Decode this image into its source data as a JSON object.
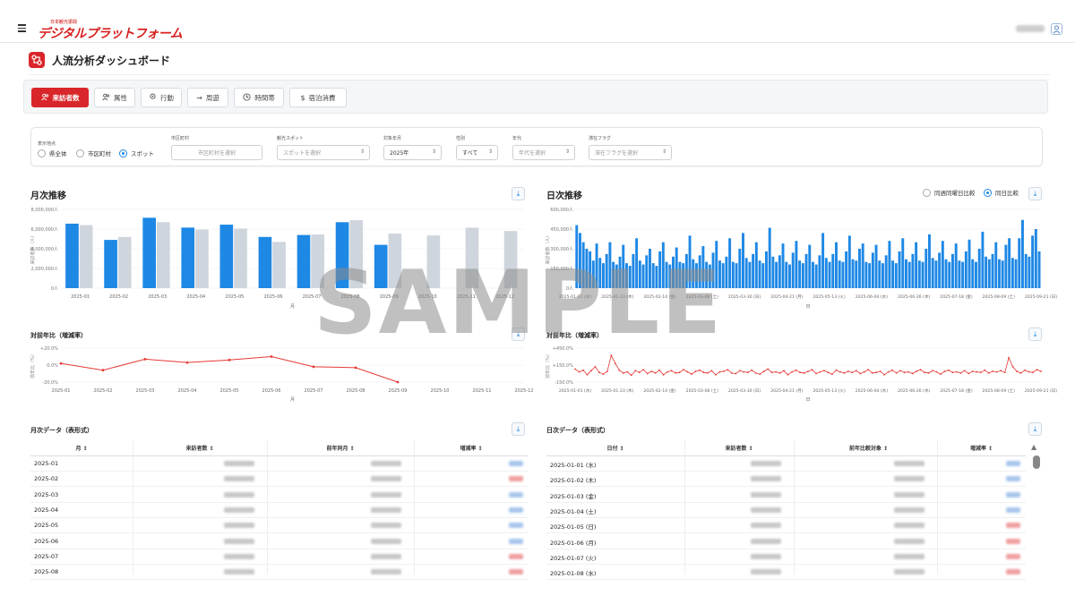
{
  "header": {
    "logo_small": "日本観光振興",
    "logo_main": "デジタルプラットフォーム",
    "user_name": "",
    "menu_icon": "hamburger-icon",
    "user_icon": "user-icon"
  },
  "page": {
    "title": "人流分析ダッシュボード",
    "title_icon": "flow-icon"
  },
  "tabs": [
    {
      "label": "来訪者数",
      "icon": "users-icon",
      "active": true
    },
    {
      "label": "属性",
      "icon": "users-icon",
      "active": false
    },
    {
      "label": "行動",
      "icon": "location-pin-icon",
      "active": false
    },
    {
      "label": "周遊",
      "icon": "arrow-right-icon",
      "active": false
    },
    {
      "label": "時間帯",
      "icon": "clock-icon",
      "active": false
    },
    {
      "label": "宿泊消費",
      "icon": "dollar-icon",
      "active": false
    }
  ],
  "filters": {
    "display_point_label": "表示地点",
    "radio_options": [
      {
        "label": "県全体",
        "selected": false
      },
      {
        "label": "市区町村",
        "selected": false
      },
      {
        "label": "スポット",
        "selected": true
      }
    ],
    "municipality": {
      "label": "市区町村",
      "placeholder": "市区町村を選択"
    },
    "spot": {
      "label": "観光スポット",
      "placeholder": "スポットを選択"
    },
    "year": {
      "label": "対象年月",
      "value": "2025年"
    },
    "gender": {
      "label": "性別",
      "value": "すべて"
    },
    "age": {
      "label": "年代",
      "placeholder": "年代を選択"
    },
    "stay": {
      "label": "滞在フラグ",
      "placeholder": "滞在フラグを選択"
    }
  },
  "monthly": {
    "title": "月次推移",
    "yoy_title": "対前年比（増減率）",
    "xlabel": "月",
    "ylabel": "来訪者数（人）",
    "yoy_ylabel": "前年比（%）",
    "download_icon": "download-icon"
  },
  "daily": {
    "title": "日次推移",
    "yoy_title": "対前年比（増減率）",
    "xlabel": "日",
    "ylabel": "来訪者数（人）",
    "yoy_ylabel": "前年比（%）",
    "legend": [
      {
        "label": "同週同曜日比較",
        "selected": false
      },
      {
        "label": "同日比較",
        "selected": true
      }
    ]
  },
  "monthly_table": {
    "title": "月次データ（表形式）",
    "headers": [
      "月 ↕",
      "来訪者数 ↕",
      "前年同月 ↕",
      "増減率 ↕"
    ],
    "rows": [
      "2025-01",
      "2025-02",
      "2025-03",
      "2025-04",
      "2025-05",
      "2025-06",
      "2025-07",
      "2025-08"
    ],
    "rate_tone": [
      "blue",
      "red",
      "blue",
      "blue",
      "blue",
      "blue",
      "red",
      "red"
    ]
  },
  "daily_table": {
    "title": "日次データ（表形式）",
    "headers": [
      "日付 ↕",
      "来訪者数 ↕",
      "前年比較対象 ↕",
      "増減率 ↕"
    ],
    "rows": [
      "2025-01-01 (水)",
      "2025-01-02 (木)",
      "2025-01-03 (金)",
      "2025-01-04 (土)",
      "2025-01-05 (日)",
      "2025-01-06 (月)",
      "2025-01-07 (火)",
      "2025-01-08 (水)"
    ],
    "rate_tone": [
      "blue",
      "blue",
      "blue",
      "blue",
      "red",
      "red",
      "red",
      "red"
    ]
  },
  "watermark": "SAMPLE",
  "chart_data": [
    {
      "type": "bar",
      "title": "月次推移",
      "xlabel": "月",
      "ylabel": "来訪者数（人）",
      "categories": [
        "2025-01",
        "2025-02",
        "2025-03",
        "2025-04",
        "2025-05",
        "2025-06",
        "2025-07",
        "2025-08",
        "2025-09",
        "2025-10",
        "2025-11",
        "2025-12"
      ],
      "y_ticks": [
        "8,000,000人",
        "6,000,000人",
        "4,000,000人",
        "2,000,000人",
        "0人"
      ],
      "ylim": [
        0,
        8000000
      ],
      "series": [
        {
          "values": [
            6550000,
            4900000,
            7150000,
            6150000,
            6450000,
            5200000,
            5400000,
            6700000,
            4400000,
            null,
            null,
            null
          ],
          "color": "#1e88e5"
        },
        {
          "values": [
            6400000,
            5200000,
            6700000,
            5950000,
            6050000,
            4700000,
            5450000,
            6900000,
            5550000,
            5350000,
            6150000,
            5800000
          ],
          "color": "#cfd5dc"
        }
      ],
      "grid": true
    },
    {
      "type": "bar",
      "title": "日次推移",
      "xlabel": "日",
      "ylabel": "来訪者数（人）",
      "y_ticks": [
        "600,000人",
        "450,000人",
        "300,000人",
        "150,000人",
        "0人"
      ],
      "ylim": [
        0,
        600000
      ],
      "x_ticks": [
        "2025-01-01 (水)",
        "2025-01-23 (木)",
        "2025-02-14 (金)",
        "2025-03-08 (土)",
        "2025-03-30 (日)",
        "2025-04-21 (月)",
        "2025-05-13 (火)",
        "2025-06-04 (水)",
        "2025-06-26 (木)",
        "2025-07-18 (金)",
        "2025-08-09 (土)",
        "2025-09-21 (日)"
      ],
      "series": [
        {
          "values": [
            480000,
            420000,
            350000,
            300000,
            280000,
            210000,
            340000,
            230000,
            190000,
            260000,
            350000,
            200000,
            180000,
            240000,
            330000,
            190000,
            170000,
            260000,
            380000,
            210000,
            180000,
            250000,
            300000,
            190000,
            170000,
            280000,
            350000,
            200000,
            180000,
            240000,
            310000,
            200000,
            190000,
            260000,
            400000,
            220000,
            190000,
            250000,
            320000,
            200000,
            180000,
            270000,
            360000,
            210000,
            190000,
            240000,
            380000,
            200000,
            190000,
            300000,
            420000,
            230000,
            200000,
            260000,
            350000,
            210000,
            190000,
            280000,
            460000,
            240000,
            200000,
            250000,
            340000,
            200000,
            180000,
            270000,
            360000,
            210000,
            190000,
            260000,
            330000,
            200000,
            180000,
            250000,
            420000,
            230000,
            200000,
            260000,
            350000,
            210000,
            200000,
            280000,
            400000,
            220000,
            210000,
            300000,
            340000,
            200000,
            190000,
            270000,
            330000,
            210000,
            190000,
            250000,
            360000,
            210000,
            190000,
            280000,
            380000,
            220000,
            200000,
            260000,
            350000,
            210000,
            200000,
            300000,
            410000,
            230000,
            210000,
            270000,
            360000,
            220000,
            200000,
            260000,
            340000,
            210000,
            200000,
            280000,
            370000,
            220000,
            200000,
            300000,
            430000,
            240000,
            220000,
            260000,
            350000,
            220000,
            210000,
            330000,
            380000,
            230000,
            220000,
            380000,
            520000,
            260000,
            240000,
            400000,
            450000,
            280000
          ],
          "color": "#1e88e5"
        }
      ],
      "grid": true
    },
    {
      "type": "line",
      "title": "対前年比（増減率）",
      "xlabel": "月",
      "ylabel": "前年比（%）",
      "categories": [
        "2025-01",
        "2025-02",
        "2025-03",
        "2025-04",
        "2025-05",
        "2025-06",
        "2025-07",
        "2025-08",
        "2025-09",
        "2025-10",
        "2025-11",
        "2025-12"
      ],
      "y_ticks": [
        "+20.0%",
        "0.0%",
        "-20.0%"
      ],
      "ylim": [
        -20,
        20
      ],
      "series": [
        {
          "values": [
            2,
            -6,
            7,
            3,
            6,
            10,
            -2,
            -3,
            -20,
            null,
            null,
            null
          ],
          "color": "#e53935"
        }
      ],
      "grid": true
    },
    {
      "type": "line",
      "title": "対前年比（増減率）",
      "xlabel": "日",
      "ylabel": "前年比（%）",
      "y_ticks": [
        "+450.0%",
        "+150.0%",
        "-150.0%"
      ],
      "ylim": [
        -150,
        450
      ],
      "series": [
        {
          "values": [
            80,
            30,
            60,
            -20,
            50,
            120,
            20,
            -10,
            40,
            320,
            180,
            60,
            10,
            30,
            -30,
            50,
            20,
            70,
            0,
            40,
            10,
            60,
            -20,
            30,
            50,
            10,
            20,
            70,
            30,
            -10,
            40,
            60,
            20,
            10,
            50,
            -20,
            30,
            40,
            70,
            10,
            0,
            50,
            30,
            20,
            60,
            10,
            -10,
            40,
            80,
            20,
            30,
            10,
            50,
            -20,
            30,
            60,
            20,
            10,
            40,
            70,
            0,
            30,
            50,
            20,
            -10,
            60,
            30,
            10,
            40,
            20,
            50,
            0,
            30,
            70,
            10,
            20,
            40,
            -20,
            30,
            60,
            10,
            50,
            20,
            30,
            0,
            40,
            70,
            20,
            10,
            50,
            30,
            -10,
            40,
            60,
            20,
            30,
            10,
            50,
            0,
            40,
            30,
            20,
            60,
            10,
            40,
            30,
            50,
            20,
            280,
            120,
            40,
            10,
            60,
            30,
            20,
            70,
            40
          ],
          "color": "#e53935"
        }
      ],
      "grid": true
    }
  ]
}
